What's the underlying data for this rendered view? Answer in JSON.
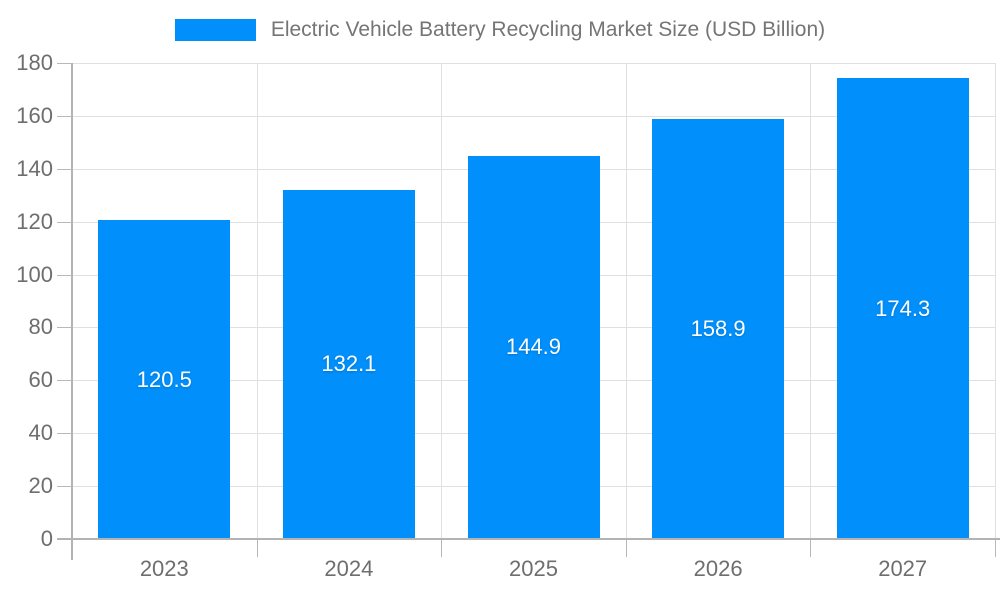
{
  "chart_data": {
    "type": "bar",
    "title": "Electric Vehicle Battery Recycling Market Size (USD Billion)",
    "categories": [
      "2023",
      "2024",
      "2025",
      "2026",
      "2027"
    ],
    "values": [
      120.5,
      132.1,
      144.9,
      158.9,
      174.3
    ],
    "value_labels": [
      "120.5",
      "132.1",
      "144.9",
      "158.9",
      "174.3"
    ],
    "xlabel": "",
    "ylabel": "",
    "ylim": [
      0,
      180
    ],
    "ytick_step": 20,
    "ytick_labels": [
      "0",
      "20",
      "40",
      "60",
      "80",
      "100",
      "120",
      "140",
      "160",
      "180"
    ],
    "grid": true,
    "legend_position": "top",
    "colors": {
      "bar": "#008FFB",
      "gridline": "#e0e0e0",
      "axis_line": "#b3b3b3",
      "tick_mark": "#b8b8b8",
      "tick_label": "#6e6e6e",
      "legend_label": "#757575",
      "value_label": "#ffffff",
      "background": "#ffffff"
    }
  }
}
